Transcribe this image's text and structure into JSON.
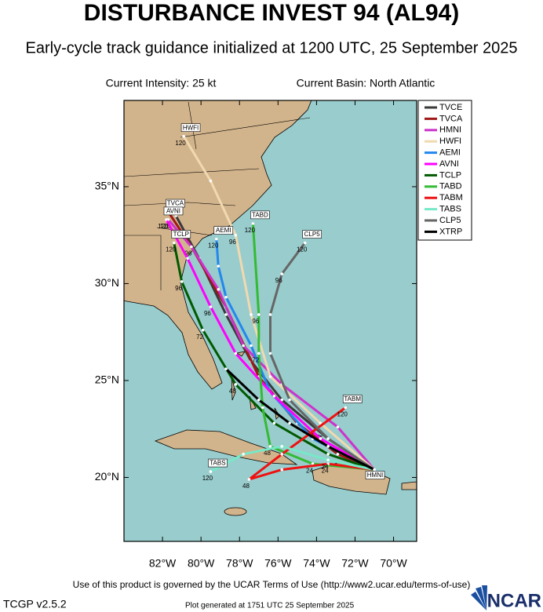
{
  "header": {
    "title": "DISTURBANCE INVEST 94 (AL94)",
    "subtitle": "Early-cycle track guidance initialized at 1200 UTC, 25 September 2025",
    "intensity": "Current Intensity: 25 kt",
    "basin": "Current Basin: North Atlantic"
  },
  "map": {
    "xlim": [
      -84.0,
      -68.8
    ],
    "ylim": [
      16.7,
      39.45
    ],
    "xticks": [
      {
        "value": -82,
        "label": "82°W"
      },
      {
        "value": -80,
        "label": "80°W"
      },
      {
        "value": -78,
        "label": "78°W"
      },
      {
        "value": -76,
        "label": "76°W"
      },
      {
        "value": -74,
        "label": "74°W"
      },
      {
        "value": -72,
        "label": "72°W"
      },
      {
        "value": -70,
        "label": "70°W"
      }
    ],
    "yticks": [
      {
        "value": 20,
        "label": "20°N"
      },
      {
        "value": 25,
        "label": "25°N"
      },
      {
        "value": 30,
        "label": "30°N"
      },
      {
        "value": 35,
        "label": "35°N"
      }
    ],
    "tracks": [
      {
        "name": "TVCE",
        "color": "#3a3a3a",
        "points": [
          {
            "lon": -71.0,
            "lat": 20.4
          },
          {
            "lon": -73.4,
            "lat": 22.0
          },
          {
            "lon": -75.8,
            "lat": 24.0
          },
          {
            "lon": -77.4,
            "lat": 26.0
          },
          {
            "lon": -78.7,
            "lat": 28.4
          },
          {
            "lon": -80.1,
            "lat": 31.3
          },
          {
            "lon": -81.3,
            "lat": 33.5
          }
        ]
      },
      {
        "name": "TVCA",
        "color": "#a01818",
        "name_box": "end",
        "points": [
          {
            "lon": -71.0,
            "lat": 20.4
          },
          {
            "lon": -72.9,
            "lat": 21.2
          },
          {
            "lon": -75.0,
            "lat": 22.8
          },
          {
            "lon": -77.0,
            "lat": 25.2
          },
          {
            "lon": -78.7,
            "lat": 28.8
          },
          {
            "lon": -80.5,
            "lat": 31.9
          },
          {
            "lon": -81.7,
            "lat": 33.7
          }
        ]
      },
      {
        "name": "HMNI",
        "color": "#cc33cc",
        "name_box": "start",
        "points": [
          {
            "lon": -71.0,
            "lat": 20.4
          },
          {
            "lon": -72.9,
            "lat": 22.6
          },
          {
            "lon": -75.8,
            "lat": 24.8
          },
          {
            "lon": -77.8,
            "lat": 26.8
          },
          {
            "lon": -79.1,
            "lat": 29.7
          },
          {
            "lon": -80.5,
            "lat": 31.9,
            "label": "96"
          },
          {
            "lon": -81.7,
            "lat": 33.3,
            "label": "120"
          }
        ]
      },
      {
        "name": "HWFI",
        "color": "#f0d9b0",
        "name_box": "end",
        "points": [
          {
            "lon": -71.0,
            "lat": 20.4
          },
          {
            "lon": -73.8,
            "lat": 22.8
          },
          {
            "lon": -76.4,
            "lat": 25.2
          },
          {
            "lon": -77.4,
            "lat": 28.4
          },
          {
            "lon": -78.2,
            "lat": 32.5,
            "label": "96"
          },
          {
            "lon": -79.5,
            "lat": 35.3
          },
          {
            "lon": -80.9,
            "lat": 37.6,
            "label": "120"
          }
        ]
      },
      {
        "name": "AEMI",
        "color": "#2288ee",
        "name_box": "end",
        "points": [
          {
            "lon": -71.0,
            "lat": 20.4
          },
          {
            "lon": -74.2,
            "lat": 22.0
          },
          {
            "lon": -76.4,
            "lat": 24.4
          },
          {
            "lon": -77.4,
            "lat": 26.8
          },
          {
            "lon": -78.7,
            "lat": 29.3
          },
          {
            "lon": -79.1,
            "lat": 30.9
          },
          {
            "lon": -79.2,
            "lat": 32.3,
            "label": "120"
          }
        ]
      },
      {
        "name": "AVNI",
        "color": "#ff00ff",
        "name_box": "end",
        "points": [
          {
            "lon": -71.0,
            "lat": 20.4
          },
          {
            "lon": -73.8,
            "lat": 22.0
          },
          {
            "lon": -76.2,
            "lat": 24.2
          },
          {
            "lon": -78.2,
            "lat": 26.4
          },
          {
            "lon": -79.5,
            "lat": 28.8,
            "label": "96"
          },
          {
            "lon": -80.7,
            "lat": 31.3
          },
          {
            "lon": -81.8,
            "lat": 33.3,
            "label": "120"
          }
        ]
      },
      {
        "name": "TCLP",
        "color": "#005a00",
        "name_box": "end",
        "points": [
          {
            "lon": -71.0,
            "lat": 20.4
          },
          {
            "lon": -73.4,
            "lat": 21.2
          },
          {
            "lon": -76.2,
            "lat": 22.8
          },
          {
            "lon": -78.2,
            "lat": 24.8,
            "label": "48"
          },
          {
            "lon": -79.9,
            "lat": 27.6,
            "label": "72"
          },
          {
            "lon": -81.0,
            "lat": 30.1,
            "label": "96"
          },
          {
            "lon": -81.4,
            "lat": 32.1,
            "label": "120"
          }
        ]
      },
      {
        "name": "TABD",
        "color": "#33bb33",
        "name_box": "end",
        "points": [
          {
            "lon": -71.0,
            "lat": 20.4
          },
          {
            "lon": -74.2,
            "lat": 20.7,
            "label": "24"
          },
          {
            "lon": -76.4,
            "lat": 21.6,
            "label": "48"
          },
          {
            "lon": -76.8,
            "lat": 23.6
          },
          {
            "lon": -77.0,
            "lat": 26.4,
            "label": "72"
          },
          {
            "lon": -77.0,
            "lat": 28.4,
            "label": "96"
          },
          {
            "lon": -77.3,
            "lat": 33.1,
            "label": "120"
          }
        ]
      },
      {
        "name": "TABM",
        "color": "#ee1111",
        "name_box": "end",
        "points": [
          {
            "lon": -71.0,
            "lat": 20.4
          },
          {
            "lon": -73.4,
            "lat": 20.7,
            "label": "24"
          },
          {
            "lon": -75.8,
            "lat": 20.4
          },
          {
            "lon": -77.5,
            "lat": 19.9,
            "label": "48"
          },
          {
            "lon": -75.8,
            "lat": 21.2
          },
          {
            "lon": -72.5,
            "lat": 23.6,
            "label": "120"
          }
        ]
      },
      {
        "name": "TABS",
        "color": "#77e8c8",
        "name_box": "end",
        "points": [
          {
            "lon": -71.0,
            "lat": 20.4
          },
          {
            "lon": -73.4,
            "lat": 20.9,
            "label": "24"
          },
          {
            "lon": -75.8,
            "lat": 21.6
          },
          {
            "lon": -77.8,
            "lat": 21.2
          },
          {
            "lon": -79.5,
            "lat": 20.3,
            "label": "120"
          }
        ]
      },
      {
        "name": "CLP5",
        "color": "#666666",
        "name_box": "end",
        "points": [
          {
            "lon": -71.0,
            "lat": 20.4
          },
          {
            "lon": -73.4,
            "lat": 22.0
          },
          {
            "lon": -75.4,
            "lat": 24.0
          },
          {
            "lon": -76.4,
            "lat": 26.4
          },
          {
            "lon": -76.4,
            "lat": 28.4
          },
          {
            "lon": -75.8,
            "lat": 30.5,
            "label": "96"
          },
          {
            "lon": -74.6,
            "lat": 32.1,
            "label": "120"
          }
        ]
      },
      {
        "name": "XTRP",
        "color": "#000000",
        "points": [
          {
            "lon": -71.0,
            "lat": 20.4
          },
          {
            "lon": -73.4,
            "lat": 21.6
          },
          {
            "lon": -75.4,
            "lat": 22.8
          },
          {
            "lon": -77.0,
            "lat": 24.0
          },
          {
            "lon": -78.7,
            "lat": 25.6
          }
        ]
      }
    ]
  },
  "footer": {
    "terms": "Use of this product is governed by the UCAR Terms of Use (http://www2.ucar.edu/terms-of-use)",
    "version": "TCGP v2.5.2",
    "generated": "Plot generated at 1751 UTC  25 September 2025",
    "logo": "NCAR"
  }
}
